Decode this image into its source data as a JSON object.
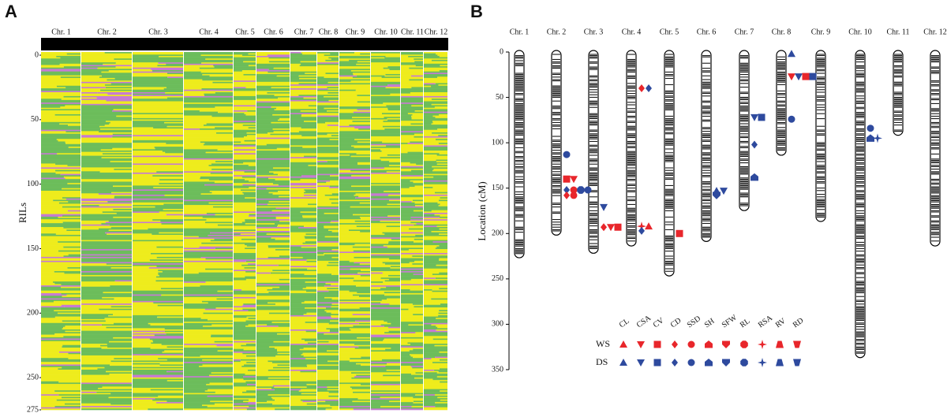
{
  "chart_data": [
    {
      "type": "heatmap",
      "label": "A",
      "ylabel": "RILs",
      "categories": [
        "Chr. 1",
        "Chr. 2",
        "Chr. 3",
        "Chr. 4",
        "Chr. 5",
        "Chr. 6",
        "Chr. 7",
        "Chr. 8",
        "Chr. 9",
        "Chr. 10",
        "Chr. 11",
        "Chr. 12"
      ],
      "ylim": [
        0,
        275
      ],
      "yticks": [
        0,
        50,
        100,
        150,
        200,
        250,
        275
      ],
      "colors": [
        "#6cbd5b",
        "#eeec1c",
        "#c67bd2"
      ]
    },
    {
      "type": "linkage-map",
      "label": "B",
      "ylabel": "Location (cM)",
      "categories": [
        "Chr. 1",
        "Chr. 2",
        "Chr. 3",
        "Chr. 4",
        "Chr. 5",
        "Chr. 6",
        "Chr. 7",
        "Chr. 8",
        "Chr. 9",
        "Chr. 10",
        "Chr. 11",
        "Chr. 12"
      ],
      "lengths": [
        225,
        200,
        220,
        212,
        245,
        207,
        173,
        112,
        185,
        335,
        90,
        212
      ],
      "ylim": [
        0,
        350
      ],
      "yticks": [
        0,
        50,
        100,
        150,
        200,
        250,
        300,
        350
      ],
      "traits": [
        "CL",
        "CSA",
        "CV",
        "CD",
        "SSD",
        "SH",
        "SFW",
        "RL",
        "RSA",
        "RV",
        "RD"
      ],
      "environments": [
        {
          "name": "WS",
          "color": "#e8262b"
        },
        {
          "name": "DS",
          "color": "#2e4a9e"
        }
      ],
      "qtl": [
        {
          "chr": "Chr. 2",
          "position": 113,
          "trait": "SSD",
          "env": "DS"
        },
        {
          "chr": "Chr. 2",
          "position": 140,
          "trait": "CV",
          "env": "WS"
        },
        {
          "chr": "Chr. 2",
          "position": 140,
          "trait": "CSA",
          "env": "WS"
        },
        {
          "chr": "Chr. 2",
          "position": 152,
          "trait": "CD",
          "env": "DS"
        },
        {
          "chr": "Chr. 2",
          "position": 152,
          "trait": "SSD",
          "env": "WS"
        },
        {
          "chr": "Chr. 2",
          "position": 152,
          "trait": "RL",
          "env": "DS"
        },
        {
          "chr": "Chr. 2",
          "position": 152,
          "trait": "SSD",
          "env": "DS"
        },
        {
          "chr": "Chr. 2",
          "position": 158,
          "trait": "CD",
          "env": "WS"
        },
        {
          "chr": "Chr. 2",
          "position": 158,
          "trait": "SSD",
          "env": "WS"
        },
        {
          "chr": "Chr. 3",
          "position": 171,
          "trait": "CSA",
          "env": "DS"
        },
        {
          "chr": "Chr. 3",
          "position": 193,
          "trait": "CD",
          "env": "WS"
        },
        {
          "chr": "Chr. 3",
          "position": 193,
          "trait": "CSA",
          "env": "WS"
        },
        {
          "chr": "Chr. 3",
          "position": 193,
          "trait": "CV",
          "env": "WS"
        },
        {
          "chr": "Chr. 4",
          "position": 40,
          "trait": "CD",
          "env": "WS"
        },
        {
          "chr": "Chr. 4",
          "position": 40,
          "trait": "CD",
          "env": "DS"
        },
        {
          "chr": "Chr. 4",
          "position": 192,
          "trait": "RSA",
          "env": "WS"
        },
        {
          "chr": "Chr. 4",
          "position": 192,
          "trait": "CL",
          "env": "WS"
        },
        {
          "chr": "Chr. 4",
          "position": 197,
          "trait": "CD",
          "env": "DS"
        },
        {
          "chr": "Chr. 5",
          "position": 200,
          "trait": "CV",
          "env": "WS"
        },
        {
          "chr": "Chr. 6",
          "position": 153,
          "trait": "CL",
          "env": "DS"
        },
        {
          "chr": "Chr. 6",
          "position": 153,
          "trait": "CSA",
          "env": "DS"
        },
        {
          "chr": "Chr. 6",
          "position": 158,
          "trait": "SFW",
          "env": "DS"
        },
        {
          "chr": "Chr. 7",
          "position": 72,
          "trait": "CSA",
          "env": "DS"
        },
        {
          "chr": "Chr. 7",
          "position": 72,
          "trait": "CV",
          "env": "DS"
        },
        {
          "chr": "Chr. 7",
          "position": 102,
          "trait": "CD",
          "env": "DS"
        },
        {
          "chr": "Chr. 7",
          "position": 138,
          "trait": "SH",
          "env": "DS"
        },
        {
          "chr": "Chr. 8",
          "position": 2,
          "trait": "CL",
          "env": "DS"
        },
        {
          "chr": "Chr. 8",
          "position": 27,
          "trait": "CSA",
          "env": "WS"
        },
        {
          "chr": "Chr. 8",
          "position": 27,
          "trait": "CSA",
          "env": "DS"
        },
        {
          "chr": "Chr. 8",
          "position": 27,
          "trait": "CV",
          "env": "WS"
        },
        {
          "chr": "Chr. 8",
          "position": 27,
          "trait": "CV",
          "env": "DS"
        },
        {
          "chr": "Chr. 8",
          "position": 74,
          "trait": "SSD",
          "env": "DS"
        },
        {
          "chr": "Chr. 10",
          "position": 84,
          "trait": "SSD",
          "env": "DS"
        },
        {
          "chr": "Chr. 10",
          "position": 95,
          "trait": "SH",
          "env": "DS"
        },
        {
          "chr": "Chr. 10",
          "position": 95,
          "trait": "RSA",
          "env": "DS"
        }
      ]
    }
  ]
}
